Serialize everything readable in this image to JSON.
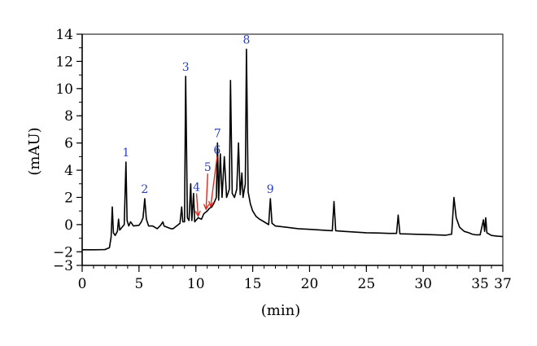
{
  "chart_data": {
    "type": "line",
    "title": "",
    "xlabel": "(min)",
    "ylabel": "(mAU)",
    "xlim": [
      0,
      37
    ],
    "ylim": [
      -3,
      14
    ],
    "x_ticks": [
      0,
      5,
      10,
      15,
      20,
      25,
      30,
      35,
      37
    ],
    "x_tick_labels": [
      "0",
      "5",
      "10",
      "15",
      "20",
      "25",
      "30",
      "35",
      "37"
    ],
    "y_ticks": [
      -3,
      -2,
      0,
      2,
      4,
      6,
      8,
      10,
      12,
      14
    ],
    "y_tick_labels": [
      "−3",
      "−2",
      "0",
      "2",
      "4",
      "6",
      "8",
      "10",
      "12",
      "14"
    ],
    "grid": false,
    "line_color": "#000000",
    "peak_label_color": "#2b3fbf",
    "arrow_color": "#e8281e",
    "series": [
      {
        "points": [
          [
            0,
            -1.85
          ],
          [
            1.0,
            -1.85
          ],
          [
            2.0,
            -1.84
          ],
          [
            2.4,
            -1.7
          ],
          [
            2.55,
            -0.9
          ],
          [
            2.65,
            1.3
          ],
          [
            2.75,
            -0.6
          ],
          [
            2.9,
            -0.8
          ],
          [
            3.1,
            -0.5
          ],
          [
            3.2,
            0.4
          ],
          [
            3.3,
            -0.4
          ],
          [
            3.5,
            -0.2
          ],
          [
            3.7,
            0.0
          ],
          [
            3.85,
            4.6
          ],
          [
            3.95,
            0.3
          ],
          [
            4.1,
            -0.1
          ],
          [
            4.25,
            0.2
          ],
          [
            4.35,
            0.1
          ],
          [
            4.5,
            -0.1
          ],
          [
            5.0,
            -0.05
          ],
          [
            5.2,
            0.2
          ],
          [
            5.35,
            0.5
          ],
          [
            5.5,
            1.9
          ],
          [
            5.65,
            0.4
          ],
          [
            5.85,
            -0.1
          ],
          [
            6.2,
            -0.1
          ],
          [
            6.6,
            -0.3
          ],
          [
            6.9,
            -0.05
          ],
          [
            7.1,
            0.2
          ],
          [
            7.2,
            -0.1
          ],
          [
            7.5,
            -0.2
          ],
          [
            7.8,
            -0.3
          ],
          [
            8.0,
            -0.3
          ],
          [
            8.3,
            -0.1
          ],
          [
            8.6,
            0.1
          ],
          [
            8.75,
            1.3
          ],
          [
            8.85,
            0.2
          ],
          [
            9.0,
            0.2
          ],
          [
            9.1,
            10.9
          ],
          [
            9.25,
            0.5
          ],
          [
            9.4,
            0.3
          ],
          [
            9.55,
            3.0
          ],
          [
            9.65,
            0.3
          ],
          [
            9.8,
            2.3
          ],
          [
            9.9,
            0.2
          ],
          [
            10.0,
            0.3
          ],
          [
            10.2,
            0.5
          ],
          [
            10.5,
            0.4
          ],
          [
            10.7,
            0.8
          ],
          [
            11.0,
            1.0
          ],
          [
            11.2,
            1.2
          ],
          [
            11.4,
            1.3
          ],
          [
            11.6,
            1.6
          ],
          [
            11.8,
            2.0
          ],
          [
            11.9,
            6.0
          ],
          [
            12.0,
            1.8
          ],
          [
            12.15,
            5.2
          ],
          [
            12.3,
            2.0
          ],
          [
            12.5,
            5.0
          ],
          [
            12.7,
            2.0
          ],
          [
            12.95,
            2.6
          ],
          [
            13.05,
            10.6
          ],
          [
            13.2,
            2.3
          ],
          [
            13.4,
            2.0
          ],
          [
            13.6,
            2.6
          ],
          [
            13.75,
            6.0
          ],
          [
            13.9,
            2.2
          ],
          [
            14.05,
            3.8
          ],
          [
            14.15,
            2.0
          ],
          [
            14.35,
            3.0
          ],
          [
            14.45,
            12.9
          ],
          [
            14.6,
            2.4
          ],
          [
            14.8,
            1.5
          ],
          [
            15.0,
            1.0
          ],
          [
            15.3,
            0.6
          ],
          [
            15.6,
            0.4
          ],
          [
            16.0,
            0.2
          ],
          [
            16.4,
            0.0
          ],
          [
            16.55,
            1.9
          ],
          [
            16.7,
            0.1
          ],
          [
            17.0,
            -0.1
          ],
          [
            18.0,
            -0.2
          ],
          [
            19.0,
            -0.3
          ],
          [
            20.0,
            -0.35
          ],
          [
            21.0,
            -0.4
          ],
          [
            22.0,
            -0.45
          ],
          [
            22.15,
            1.7
          ],
          [
            22.3,
            -0.45
          ],
          [
            23.0,
            -0.5
          ],
          [
            24.0,
            -0.55
          ],
          [
            25.0,
            -0.6
          ],
          [
            26.0,
            -0.62
          ],
          [
            27.0,
            -0.65
          ],
          [
            27.65,
            -0.65
          ],
          [
            27.8,
            0.7
          ],
          [
            27.95,
            -0.68
          ],
          [
            29.0,
            -0.7
          ],
          [
            30.0,
            -0.72
          ],
          [
            31.0,
            -0.75
          ],
          [
            32.0,
            -0.78
          ],
          [
            32.5,
            -0.7
          ],
          [
            32.7,
            2.0
          ],
          [
            32.9,
            0.5
          ],
          [
            33.2,
            -0.2
          ],
          [
            33.6,
            -0.5
          ],
          [
            34.0,
            -0.6
          ],
          [
            34.3,
            -0.7
          ],
          [
            34.6,
            -0.75
          ],
          [
            35.0,
            -0.75
          ],
          [
            35.3,
            0.35
          ],
          [
            35.4,
            -0.5
          ],
          [
            35.5,
            0.5
          ],
          [
            35.6,
            -0.6
          ],
          [
            36.0,
            -0.8
          ],
          [
            36.5,
            -0.85
          ],
          [
            37.0,
            -0.88
          ]
        ]
      }
    ],
    "peaks": [
      {
        "label": "1",
        "x": 3.85,
        "y": 4.6
      },
      {
        "label": "2",
        "x": 5.5,
        "y": 1.9
      },
      {
        "label": "3",
        "x": 9.1,
        "y": 10.9
      },
      {
        "label": "7",
        "x": 11.9,
        "y": 6.0
      },
      {
        "label": "8",
        "x": 14.45,
        "y": 12.9
      },
      {
        "label": "9",
        "x": 16.55,
        "y": 1.9
      }
    ],
    "arrow_peaks": [
      {
        "label": "4",
        "x": 10.2,
        "y": 0.5
      },
      {
        "label": "5",
        "x": 10.9,
        "y": 1.0
      },
      {
        "label": "6",
        "x": 11.3,
        "y": 1.2
      }
    ]
  }
}
